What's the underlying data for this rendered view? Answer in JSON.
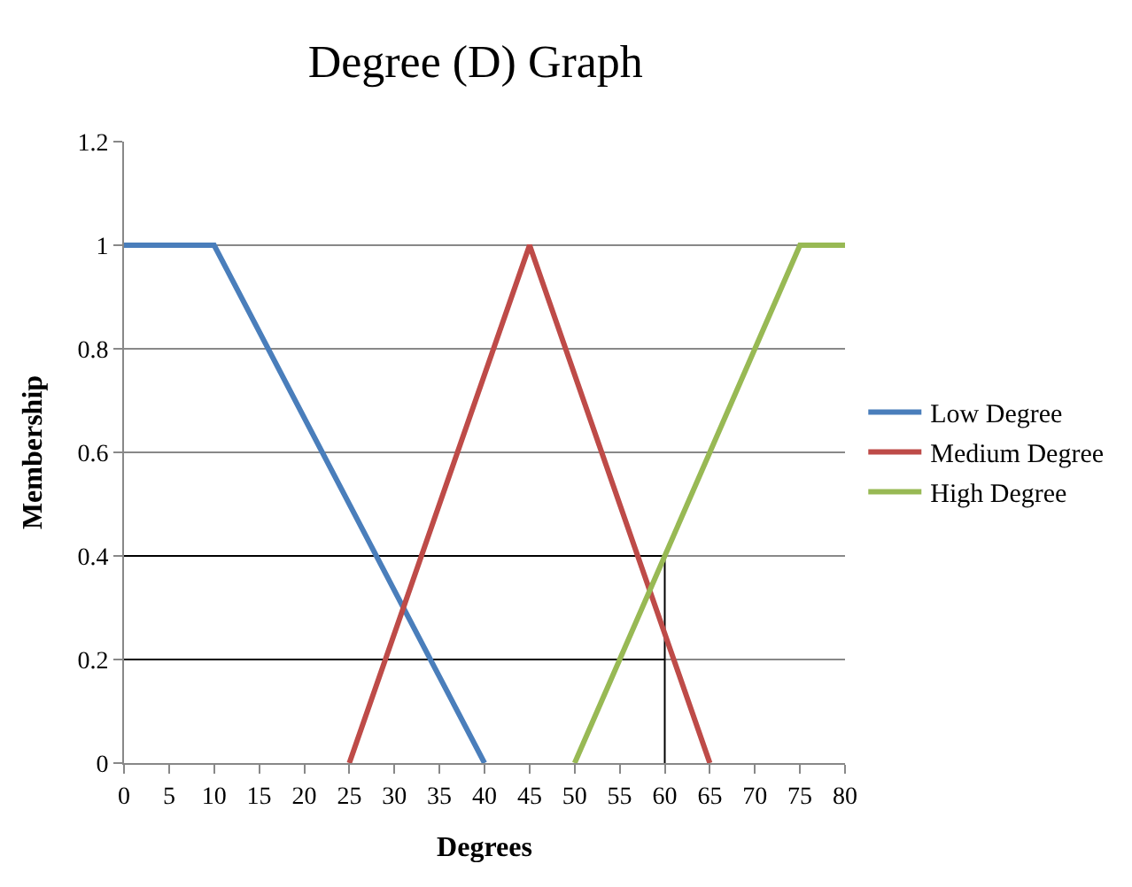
{
  "chart_data": {
    "type": "line",
    "title": "Degree (D) Graph",
    "xlabel": "Degrees",
    "ylabel": "Membership",
    "xlim": [
      0,
      80
    ],
    "xticks": [
      0,
      5,
      10,
      15,
      20,
      25,
      30,
      35,
      40,
      45,
      50,
      55,
      60,
      65,
      70,
      75,
      80
    ],
    "ylim": [
      0,
      1.2
    ],
    "yticks": [
      0,
      0.2,
      0.4,
      0.6,
      0.8,
      1,
      1.2
    ],
    "grid": "y",
    "legend": "right",
    "marker": "none",
    "line_style": "solid",
    "series": [
      {
        "x": [
          0,
          60
        ],
        "values": [
          0.4,
          0.4
        ],
        "color": "#000000"
      },
      {
        "x": [
          0,
          60
        ],
        "values": [
          0.2,
          0.2
        ],
        "color": "#000000"
      },
      {
        "x": [
          60,
          60
        ],
        "values": [
          0,
          0.4
        ],
        "color": "#000000"
      },
      {
        "name": "Low Degree",
        "x": [
          0,
          10,
          40
        ],
        "values": [
          1,
          1,
          0
        ],
        "color": "#4a7ebb"
      },
      {
        "name": "Medium Degree",
        "x": [
          25,
          45,
          65
        ],
        "values": [
          0,
          1,
          0
        ],
        "color": "#be4b48"
      },
      {
        "name": "High Degree",
        "x": [
          50,
          75,
          80
        ],
        "values": [
          0,
          1,
          1
        ],
        "color": "#98b954"
      }
    ]
  }
}
